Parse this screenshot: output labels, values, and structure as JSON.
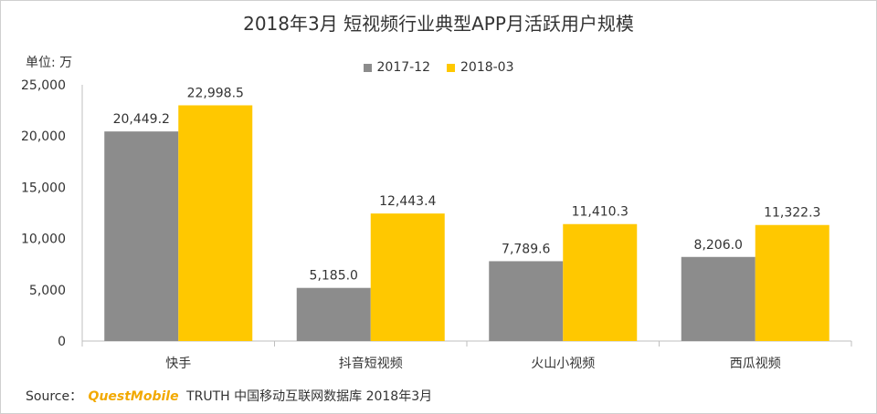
{
  "chart_data": {
    "type": "bar",
    "title": "2018年3月 短视频行业典型APP月活跃用户规模",
    "unit_label": "单位: 万",
    "categories": [
      "快手",
      "抖音短视频",
      "火山小视频",
      "西瓜视频"
    ],
    "series": [
      {
        "name": "2017-12",
        "color": "#8c8c8c",
        "values": [
          20449.2,
          5185.0,
          7789.6,
          8206.0
        ],
        "labels": [
          "20,449.2",
          "5,185.0",
          "7,789.6",
          "8,206.0"
        ]
      },
      {
        "name": "2018-03",
        "color": "#ffc800",
        "values": [
          22998.5,
          12443.4,
          11410.3,
          11322.3
        ],
        "labels": [
          "22,998.5",
          "12,443.4",
          "11,410.3",
          "11,322.3"
        ]
      }
    ],
    "yticks": [
      0,
      5000,
      10000,
      15000,
      20000,
      25000
    ],
    "ytick_labels": [
      "0",
      "5,000",
      "10,000",
      "15,000",
      "20,000",
      "25,000"
    ],
    "ylim": [
      0,
      25000
    ],
    "grid": false,
    "legend_position": "top-center"
  },
  "source": {
    "prefix": "Source：",
    "brand": "QuestMobile",
    "text": "TRUTH 中国移动互联网数据库 2018年3月"
  }
}
